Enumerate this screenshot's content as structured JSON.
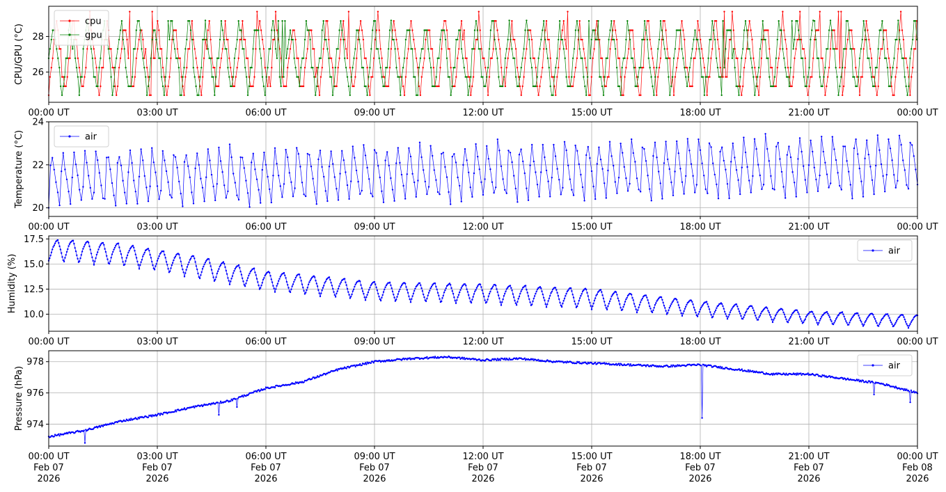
{
  "figure": {
    "x_tick_labels": [
      "00:00 UT",
      "03:00 UT",
      "06:00 UT",
      "09:00 UT",
      "12:00 UT",
      "15:00 UT",
      "18:00 UT",
      "21:00 UT",
      "00:00 UT"
    ],
    "x_tick_date_labels": [
      [
        "Feb 07",
        "2026"
      ],
      [
        "Feb 07",
        "2026"
      ],
      [
        "Feb 07",
        "2026"
      ],
      [
        "Feb 07",
        "2026"
      ],
      [
        "Feb 07",
        "2026"
      ],
      [
        "Feb 07",
        "2026"
      ],
      [
        "Feb 07",
        "2026"
      ],
      [
        "Feb 07",
        "2026"
      ],
      [
        "Feb 08",
        "2026"
      ]
    ]
  },
  "chart_data": [
    {
      "type": "line",
      "ylabel": "CPU/GPU (°C)",
      "xlim_hours": [
        0,
        24
      ],
      "ylim": [
        24.3,
        29.7
      ],
      "yticks": [
        26,
        28
      ],
      "grid": true,
      "legend_placement": "top-left",
      "series": [
        {
          "name": "cpu",
          "color": "#ff0000",
          "pattern": "sawtooth",
          "period_min": 28,
          "min": 24.7,
          "max": 28.9,
          "spike_max": 29.4,
          "offset_min": 0
        },
        {
          "name": "gpu",
          "color": "#008000",
          "pattern": "sawtooth",
          "period_min": 28,
          "min": 24.7,
          "max": 28.9,
          "spike_max": 28.9,
          "offset_min": 5
        }
      ]
    },
    {
      "type": "line",
      "ylabel": "Temperature (°C)",
      "xlim_hours": [
        0,
        24
      ],
      "ylim": [
        19.6,
        24.0
      ],
      "yticks": [
        20,
        22,
        24
      ],
      "grid": true,
      "legend_placement": "top-left",
      "series": [
        {
          "name": "air",
          "color": "#0000ff",
          "pattern": "sawtooth",
          "period_min": 18.5,
          "min": 20.0,
          "max_start": 22.7,
          "max_end": 23.5,
          "min_end": 20.5
        }
      ]
    },
    {
      "type": "line",
      "ylabel": "Humidity (%)",
      "xlim_hours": [
        0,
        24
      ],
      "ylim": [
        8.3,
        17.8
      ],
      "yticks": [
        10.0,
        12.5,
        15.0,
        17.5
      ],
      "grid": true,
      "legend_placement": "top-right",
      "series": [
        {
          "name": "air",
          "color": "#0000ff",
          "pattern": "oscillating-trend",
          "period_min": 25,
          "x_hours": [
            0,
            0.5,
            2,
            3,
            4,
            6,
            9,
            12,
            15,
            18,
            21,
            24
          ],
          "trend_max": [
            17.3,
            17.4,
            17.0,
            16.4,
            15.8,
            14.3,
            13.2,
            13.0,
            12.5,
            11.3,
            10.3,
            9.9
          ],
          "trend_min": [
            15.3,
            15.1,
            14.8,
            14.3,
            13.6,
            12.3,
            11.3,
            11.0,
            10.5,
            9.7,
            9.0,
            8.6
          ]
        }
      ]
    },
    {
      "type": "line",
      "ylabel": "Pressure (hPa)",
      "xlim_hours": [
        0,
        24
      ],
      "ylim": [
        972.6,
        978.7
      ],
      "yticks": [
        974,
        976,
        978
      ],
      "grid": true,
      "legend_placement": "top-right",
      "series": [
        {
          "name": "air",
          "color": "#0000ff",
          "pattern": "trend",
          "x_hours": [
            0,
            1,
            2,
            3,
            4,
            5,
            6,
            7,
            8,
            9,
            10,
            11,
            12,
            13,
            14,
            15,
            16,
            17,
            18,
            19,
            20,
            21,
            22,
            23,
            24
          ],
          "y": [
            973.2,
            973.6,
            974.2,
            974.6,
            975.1,
            975.5,
            976.3,
            976.7,
            977.5,
            978.0,
            978.2,
            978.3,
            978.1,
            978.2,
            978.0,
            977.9,
            977.8,
            977.7,
            977.8,
            977.5,
            977.2,
            977.2,
            976.9,
            976.6,
            976.0
          ],
          "dips": [
            [
              1.0,
              972.8
            ],
            [
              4.7,
              974.6
            ],
            [
              5.2,
              975.1
            ],
            [
              18.05,
              974.4
            ],
            [
              22.8,
              975.9
            ],
            [
              23.8,
              975.4
            ]
          ]
        }
      ]
    }
  ]
}
